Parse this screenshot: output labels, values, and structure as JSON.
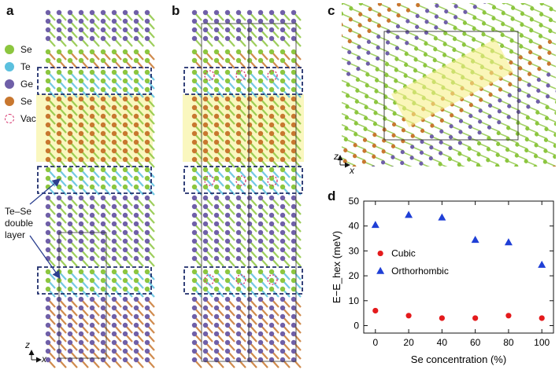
{
  "panels": {
    "a": "a",
    "b": "b",
    "c": "c",
    "d": "d"
  },
  "legend": [
    {
      "label": "Se",
      "color": "#8cc63f"
    },
    {
      "label": "Te",
      "color": "#5bc0de"
    },
    {
      "label": "Ge",
      "color": "#6f5fa8"
    },
    {
      "label": "Se",
      "color": "#c8772f"
    },
    {
      "label": "Vac",
      "color": "#d6336c"
    }
  ],
  "double_layer_label": [
    "Te–Se",
    "double",
    "layer"
  ],
  "axes_a": {
    "z": "z",
    "x": "x"
  },
  "axes_c": {
    "z": "z",
    "x": "x"
  },
  "chart_data": {
    "type": "scatter",
    "title": "",
    "xlabel": "Se concentration (%)",
    "ylabel": "E−E_hex (meV)",
    "xlim": [
      -7,
      107
    ],
    "ylim": [
      -3,
      50
    ],
    "xticks": [
      0,
      20,
      40,
      60,
      80,
      100
    ],
    "yticks": [
      0,
      10,
      20,
      30,
      40,
      50
    ],
    "legend_position": "middle-left",
    "series": [
      {
        "name": "Cubic",
        "marker": "circle",
        "color": "#e41a1c",
        "x": [
          0,
          20,
          40,
          60,
          80,
          100
        ],
        "y": [
          6,
          4,
          3,
          3,
          4,
          3
        ]
      },
      {
        "name": "Orthorhombic",
        "marker": "triangle",
        "color": "#1f3fd6",
        "x": [
          0,
          20,
          40,
          60,
          80,
          100
        ],
        "y": [
          40.5,
          44.5,
          43.5,
          34.5,
          33.5,
          24.5
        ]
      }
    ]
  }
}
